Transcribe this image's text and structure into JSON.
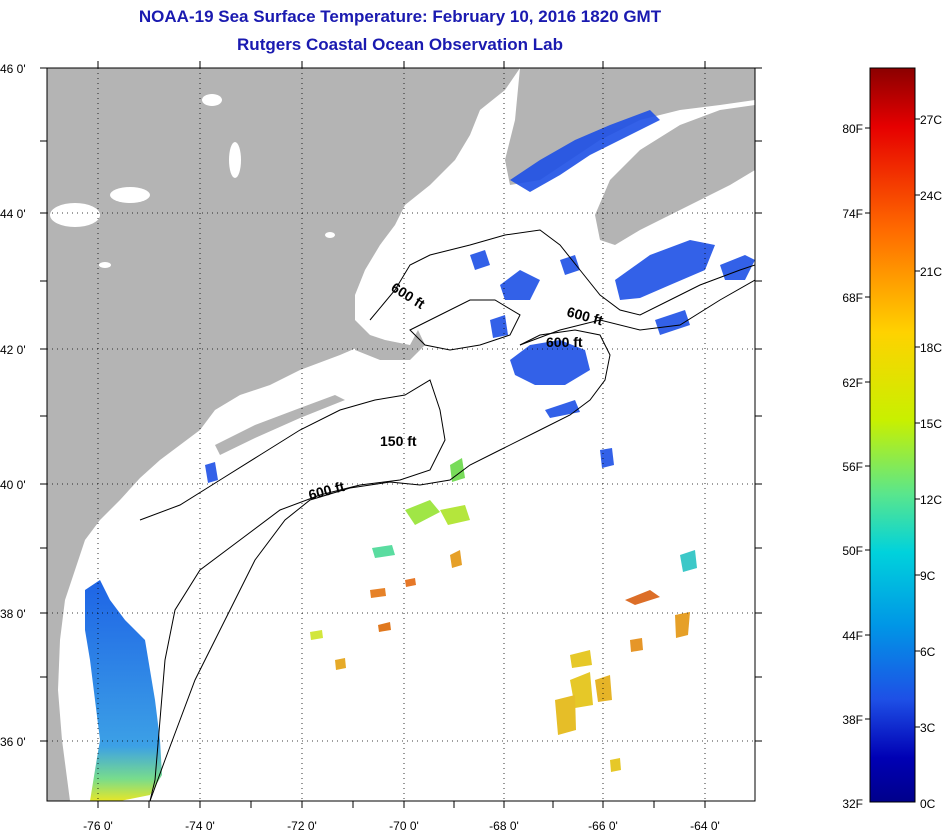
{
  "header": {
    "title": "NOAA-19 Sea Surface Temperature:  February 10, 2016 1820 GMT",
    "subtitle": "Rutgers Coastal Ocean Observation Lab"
  },
  "map": {
    "latitude_labels": [
      "46 0'",
      "44 0'",
      "42 0'",
      "40 0'",
      "38 0'",
      "36 0'"
    ],
    "latitude_values": [
      46,
      44,
      42,
      40,
      38,
      36
    ],
    "longitude_labels": [
      "-76 0'",
      "-74 0'",
      "-72 0'",
      "-70 0'",
      "-68 0'",
      "-66 0'",
      "-64 0'"
    ],
    "longitude_values": [
      -76,
      -74,
      -72,
      -70,
      -68,
      -66,
      -64
    ],
    "contour_labels": [
      {
        "text": "600 ft",
        "id": "gom-north"
      },
      {
        "text": "600 ft",
        "id": "scotian"
      },
      {
        "text": "600 ft",
        "id": "georges"
      },
      {
        "text": "150 ft",
        "id": "shelf-150"
      },
      {
        "text": "600 ft",
        "id": "shelf-600"
      }
    ],
    "colors": {
      "land": "#b4b4b4",
      "ocean": "#ffffff",
      "cold": "#1e50e6",
      "warm": "#e6b41e",
      "border": "#000000"
    }
  },
  "colorbar": {
    "fahrenheit_labels": [
      "80F",
      "74F",
      "68F",
      "62F",
      "56F",
      "50F",
      "44F",
      "38F",
      "32F"
    ],
    "celsius_labels": [
      "27C",
      "24C",
      "21C",
      "18C",
      "15C",
      "12C",
      "9C",
      "6C",
      "3C",
      "0C"
    ],
    "gradient": [
      "#8b0000",
      "#e60000",
      "#ff6a00",
      "#ffd200",
      "#c8f000",
      "#5ae68c",
      "#00d2dc",
      "#0096e6",
      "#1e50e6",
      "#0000b4",
      "#00008b"
    ]
  }
}
